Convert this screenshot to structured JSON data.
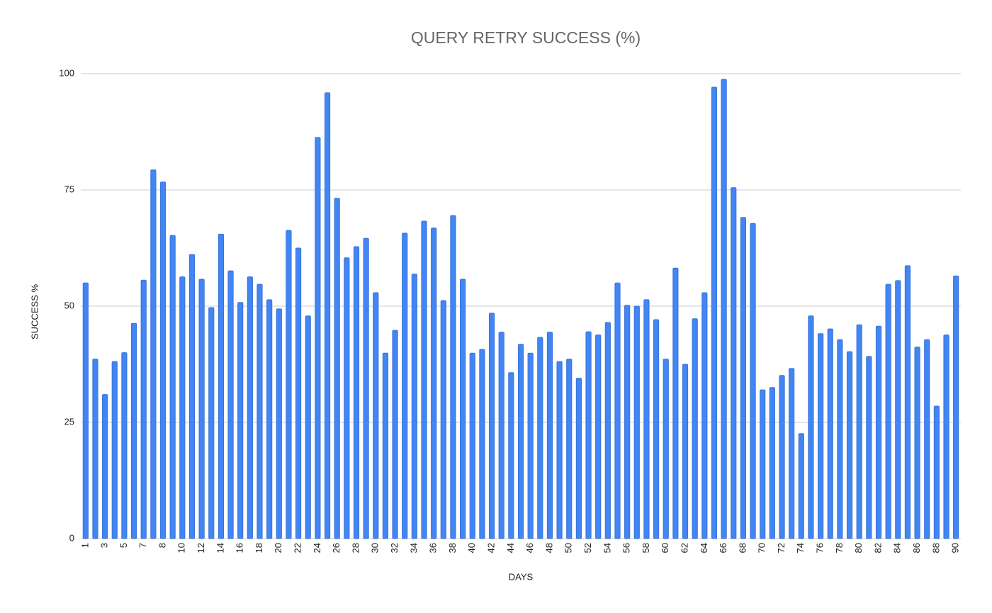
{
  "chart_data": {
    "type": "bar",
    "title": "QUERY RETRY SUCCESS (%)",
    "x_label": "DAYS",
    "y_label": "SUCCESS %",
    "categories": [
      "1",
      null,
      "3",
      null,
      "5",
      null,
      "7",
      null,
      "8",
      null,
      "10",
      null,
      "12",
      null,
      "14",
      null,
      "16",
      null,
      "18",
      null,
      "20",
      null,
      "22",
      null,
      "24",
      null,
      "26",
      null,
      "28",
      null,
      "30",
      null,
      "32",
      null,
      "34",
      null,
      "36",
      null,
      "38",
      null,
      "40",
      null,
      "42",
      null,
      "44",
      null,
      "46",
      null,
      "48",
      null,
      "50",
      null,
      "52",
      null,
      "54",
      null,
      "56",
      null,
      "58",
      null,
      "60",
      null,
      "62",
      null,
      "64",
      null,
      "66",
      null,
      "68",
      null,
      "70",
      null,
      "72",
      null,
      "74",
      null,
      "76",
      null,
      "78",
      null,
      "80",
      null,
      "82",
      null,
      "84",
      null,
      "86",
      null,
      "88",
      null,
      "90"
    ],
    "values": [
      55,
      38.6,
      31,
      38.1,
      40,
      46.3,
      55.6,
      79.3,
      76.7,
      65.2,
      56.3,
      61.1,
      55.8,
      49.7,
      65.5,
      57.6,
      50.8,
      56.3,
      54.7,
      51.4,
      49.4,
      66.3,
      62.5,
      47.9,
      86.3,
      95.9,
      73.2,
      60.4,
      62.8,
      64.6,
      52.9,
      39.9,
      44.8,
      65.7,
      56.9,
      68.3,
      66.8,
      51.2,
      69.5,
      55.8,
      39.9,
      40.7,
      48.5,
      44.4,
      35.7,
      41.8,
      39.9,
      43.3,
      44.4,
      38.1,
      38.6,
      34.5,
      44.5,
      43.8,
      46.5,
      55,
      50.2,
      50,
      51.4,
      47.1,
      38.6,
      58.2,
      37.5,
      47.3,
      52.9,
      97.1,
      98.8,
      75.5,
      69.1,
      67.8,
      32,
      32.5,
      35.1,
      36.6,
      22.6,
      47.9,
      44.1,
      45.1,
      42.8,
      40.2,
      46,
      39.2,
      45.7,
      54.7,
      55.5,
      58.7,
      41.2,
      42.8,
      28.5,
      43.8,
      56.5
    ],
    "color": "#4285f4",
    "ylim": [
      0,
      100
    ],
    "yticks": [
      0,
      25,
      50,
      75,
      100
    ],
    "grid": true
  }
}
